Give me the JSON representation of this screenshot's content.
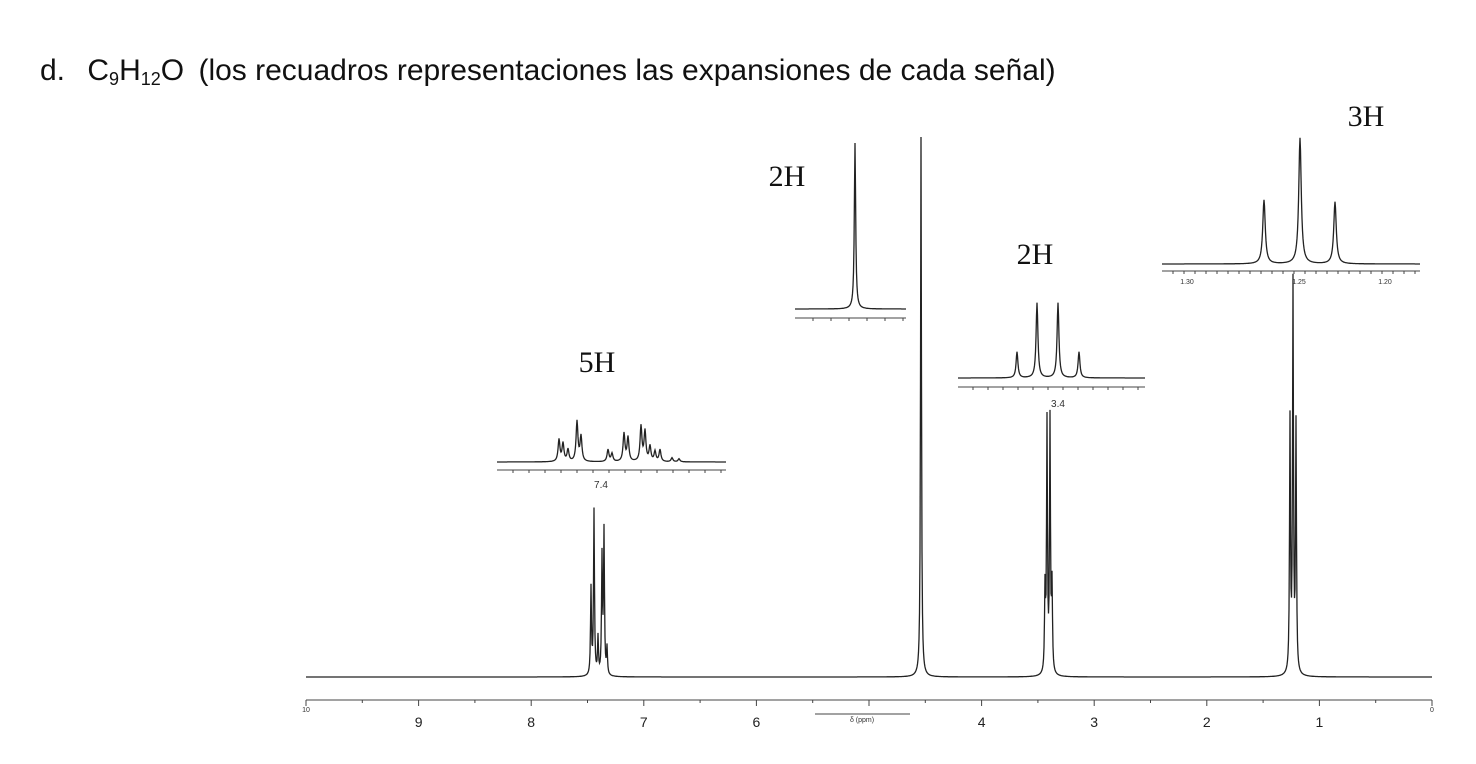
{
  "header": {
    "label": "d.",
    "formula": [
      "C",
      "9",
      "H",
      "12",
      "O"
    ],
    "text": "(los recuadros representaciones las expansiones de cada señal)"
  },
  "signals": [
    {
      "integration": "5H",
      "inset_label": "7.4"
    },
    {
      "integration": "2H"
    },
    {
      "integration": "2H",
      "inset_label": "3.4"
    },
    {
      "integration": "3H",
      "inset_labels": [
        "1.30",
        "1.25",
        "1.20"
      ]
    }
  ],
  "axis": {
    "ticks": [
      "10",
      "9",
      "8",
      "7",
      "6",
      "4",
      "3",
      "2",
      "1",
      "0"
    ],
    "label": "δ (ppm)"
  }
}
